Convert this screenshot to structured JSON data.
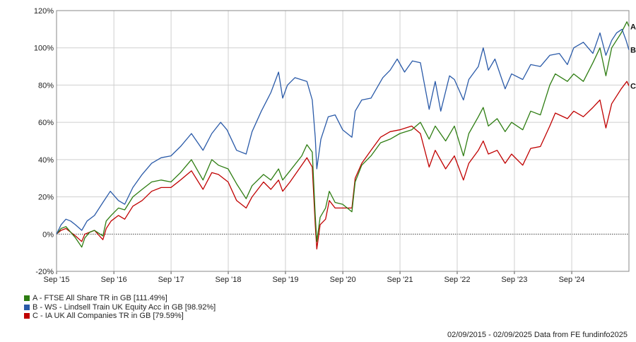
{
  "chart_data": {
    "type": "line",
    "x_start": "2015-09-02",
    "x_end": "2025-09-02",
    "x_ticks": [
      "Sep '15",
      "Sep '16",
      "Sep '17",
      "Sep '18",
      "Sep '19",
      "Sep '20",
      "Sep '21",
      "Sep '22",
      "Sep '23",
      "Sep '24"
    ],
    "y_ticks": [
      "120%",
      "100%",
      "80%",
      "60%",
      "40%",
      "20%",
      "0%",
      "-20%"
    ],
    "y_tick_values": [
      120,
      100,
      80,
      60,
      40,
      20,
      0,
      -20
    ],
    "ylim": [
      -20,
      120
    ],
    "grid": true,
    "legend_placement": "bottom-left",
    "series": [
      {
        "id": "A",
        "name": "A - FTSE All Share TR in GB [111.49%]",
        "color": "#2e7d12",
        "values": [
          [
            "2015-09-02",
            0
          ],
          [
            "2015-10-01",
            3
          ],
          [
            "2015-11-01",
            4
          ],
          [
            "2015-12-01",
            1
          ],
          [
            "2016-01-01",
            -2
          ],
          [
            "2016-02-10",
            -7
          ],
          [
            "2016-03-01",
            -2
          ],
          [
            "2016-04-01",
            1
          ],
          [
            "2016-05-01",
            2
          ],
          [
            "2016-06-24",
            -1
          ],
          [
            "2016-07-15",
            7
          ],
          [
            "2016-08-15",
            10
          ],
          [
            "2016-10-01",
            14
          ],
          [
            "2016-11-10",
            13
          ],
          [
            "2017-01-01",
            20
          ],
          [
            "2017-03-01",
            24
          ],
          [
            "2017-05-01",
            28
          ],
          [
            "2017-07-01",
            29
          ],
          [
            "2017-09-01",
            28
          ],
          [
            "2017-11-01",
            33
          ],
          [
            "2018-01-10",
            40
          ],
          [
            "2018-03-25",
            29
          ],
          [
            "2018-05-20",
            40
          ],
          [
            "2018-07-01",
            37
          ],
          [
            "2018-09-01",
            35
          ],
          [
            "2018-10-25",
            27
          ],
          [
            "2018-12-25",
            19
          ],
          [
            "2019-02-01",
            26
          ],
          [
            "2019-04-15",
            32
          ],
          [
            "2019-06-01",
            29
          ],
          [
            "2019-07-20",
            35
          ],
          [
            "2019-08-15",
            29
          ],
          [
            "2019-10-01",
            34
          ],
          [
            "2019-12-15",
            42
          ],
          [
            "2020-01-17",
            48
          ],
          [
            "2020-02-20",
            44
          ],
          [
            "2020-03-10",
            10
          ],
          [
            "2020-03-20",
            -4
          ],
          [
            "2020-04-10",
            9
          ],
          [
            "2020-05-15",
            14
          ],
          [
            "2020-06-08",
            23
          ],
          [
            "2020-07-15",
            17
          ],
          [
            "2020-09-01",
            16
          ],
          [
            "2020-10-30",
            12
          ],
          [
            "2020-11-20",
            28
          ],
          [
            "2021-01-01",
            37
          ],
          [
            "2021-03-01",
            42
          ],
          [
            "2021-05-01",
            49
          ],
          [
            "2021-07-01",
            51
          ],
          [
            "2021-09-01",
            54
          ],
          [
            "2021-11-15",
            56
          ],
          [
            "2022-01-10",
            60
          ],
          [
            "2022-03-07",
            51
          ],
          [
            "2022-04-15",
            58
          ],
          [
            "2022-06-20",
            50
          ],
          [
            "2022-08-15",
            58
          ],
          [
            "2022-10-12",
            42
          ],
          [
            "2022-11-15",
            54
          ],
          [
            "2023-01-15",
            63
          ],
          [
            "2023-02-15",
            68
          ],
          [
            "2023-03-20",
            58
          ],
          [
            "2023-05-15",
            62
          ],
          [
            "2023-07-05",
            55
          ],
          [
            "2023-08-15",
            60
          ],
          [
            "2023-10-25",
            56
          ],
          [
            "2023-12-15",
            66
          ],
          [
            "2024-02-15",
            64
          ],
          [
            "2024-04-15",
            80
          ],
          [
            "2024-05-20",
            86
          ],
          [
            "2024-08-05",
            82
          ],
          [
            "2024-09-15",
            86
          ],
          [
            "2024-11-15",
            82
          ],
          [
            "2025-01-15",
            92
          ],
          [
            "2025-03-01",
            100
          ],
          [
            "2025-04-08",
            85
          ],
          [
            "2025-05-15",
            100
          ],
          [
            "2025-07-15",
            108
          ],
          [
            "2025-08-20",
            114
          ],
          [
            "2025-09-02",
            111.49
          ]
        ]
      },
      {
        "id": "B",
        "name": "B - WS - Lindsell Train UK Equity Acc in GB [98.92%]",
        "color": "#2a5aa8",
        "values": [
          [
            "2015-09-02",
            0
          ],
          [
            "2015-10-01",
            5
          ],
          [
            "2015-11-01",
            8
          ],
          [
            "2015-12-01",
            7
          ],
          [
            "2016-01-01",
            5
          ],
          [
            "2016-02-10",
            2
          ],
          [
            "2016-03-15",
            7
          ],
          [
            "2016-05-01",
            10
          ],
          [
            "2016-06-24",
            17
          ],
          [
            "2016-08-10",
            23
          ],
          [
            "2016-10-01",
            18
          ],
          [
            "2016-11-10",
            16
          ],
          [
            "2017-01-01",
            25
          ],
          [
            "2017-03-01",
            32
          ],
          [
            "2017-05-01",
            38
          ],
          [
            "2017-07-01",
            41
          ],
          [
            "2017-09-01",
            42
          ],
          [
            "2017-11-01",
            47
          ],
          [
            "2018-01-10",
            54
          ],
          [
            "2018-03-25",
            45
          ],
          [
            "2018-05-20",
            54
          ],
          [
            "2018-07-15",
            60
          ],
          [
            "2018-08-25",
            56
          ],
          [
            "2018-10-25",
            45
          ],
          [
            "2018-12-25",
            43
          ],
          [
            "2019-02-01",
            55
          ],
          [
            "2019-04-01",
            66
          ],
          [
            "2019-06-01",
            76
          ],
          [
            "2019-07-20",
            87
          ],
          [
            "2019-08-15",
            73
          ],
          [
            "2019-09-15",
            80
          ],
          [
            "2019-11-01",
            84
          ],
          [
            "2020-01-17",
            82
          ],
          [
            "2020-02-20",
            72
          ],
          [
            "2020-03-10",
            52
          ],
          [
            "2020-03-20",
            35
          ],
          [
            "2020-04-15",
            51
          ],
          [
            "2020-06-01",
            63
          ],
          [
            "2020-07-15",
            64
          ],
          [
            "2020-09-01",
            56
          ],
          [
            "2020-10-30",
            52
          ],
          [
            "2020-11-20",
            66
          ],
          [
            "2021-01-01",
            72
          ],
          [
            "2021-03-01",
            73
          ],
          [
            "2021-05-15",
            84
          ],
          [
            "2021-07-01",
            88
          ],
          [
            "2021-08-15",
            94
          ],
          [
            "2021-10-01",
            87
          ],
          [
            "2021-11-20",
            93
          ],
          [
            "2022-01-10",
            92
          ],
          [
            "2022-03-07",
            67
          ],
          [
            "2022-04-15",
            82
          ],
          [
            "2022-05-20",
            66
          ],
          [
            "2022-07-15",
            85
          ],
          [
            "2022-08-15",
            83
          ],
          [
            "2022-10-12",
            72
          ],
          [
            "2022-11-15",
            83
          ],
          [
            "2023-01-15",
            90
          ],
          [
            "2023-02-15",
            100
          ],
          [
            "2023-03-20",
            88
          ],
          [
            "2023-05-01",
            94
          ],
          [
            "2023-07-05",
            78
          ],
          [
            "2023-08-15",
            86
          ],
          [
            "2023-10-25",
            83
          ],
          [
            "2023-12-15",
            91
          ],
          [
            "2024-02-15",
            90
          ],
          [
            "2024-04-15",
            96
          ],
          [
            "2024-06-15",
            97
          ],
          [
            "2024-08-05",
            91
          ],
          [
            "2024-09-15",
            100
          ],
          [
            "2024-11-15",
            103
          ],
          [
            "2025-01-15",
            97
          ],
          [
            "2025-03-01",
            108
          ],
          [
            "2025-04-08",
            96
          ],
          [
            "2025-05-15",
            104
          ],
          [
            "2025-06-15",
            108
          ],
          [
            "2025-07-20",
            110
          ],
          [
            "2025-08-15",
            104
          ],
          [
            "2025-09-02",
            98.92
          ]
        ]
      },
      {
        "id": "C",
        "name": "C - IA UK All Companies TR in GB [79.59%]",
        "color": "#c00000",
        "values": [
          [
            "2015-09-02",
            0
          ],
          [
            "2015-10-01",
            2
          ],
          [
            "2015-11-01",
            3
          ],
          [
            "2015-12-01",
            1
          ],
          [
            "2016-01-01",
            -1
          ],
          [
            "2016-02-10",
            -4
          ],
          [
            "2016-03-01",
            0
          ],
          [
            "2016-04-01",
            1
          ],
          [
            "2016-05-01",
            2
          ],
          [
            "2016-06-24",
            -3
          ],
          [
            "2016-07-15",
            3
          ],
          [
            "2016-08-15",
            7
          ],
          [
            "2016-10-01",
            10
          ],
          [
            "2016-11-10",
            8
          ],
          [
            "2017-01-01",
            15
          ],
          [
            "2017-03-01",
            18
          ],
          [
            "2017-05-01",
            23
          ],
          [
            "2017-07-01",
            25
          ],
          [
            "2017-09-01",
            25
          ],
          [
            "2017-11-01",
            29
          ],
          [
            "2018-01-10",
            34
          ],
          [
            "2018-03-25",
            24
          ],
          [
            "2018-05-20",
            33
          ],
          [
            "2018-07-01",
            32
          ],
          [
            "2018-09-01",
            28
          ],
          [
            "2018-10-25",
            18
          ],
          [
            "2018-12-25",
            14
          ],
          [
            "2019-02-01",
            20
          ],
          [
            "2019-04-15",
            28
          ],
          [
            "2019-06-01",
            24
          ],
          [
            "2019-07-20",
            29
          ],
          [
            "2019-08-15",
            23
          ],
          [
            "2019-10-01",
            28
          ],
          [
            "2019-12-15",
            37
          ],
          [
            "2020-01-17",
            41
          ],
          [
            "2020-02-20",
            36
          ],
          [
            "2020-03-10",
            5
          ],
          [
            "2020-03-20",
            -8
          ],
          [
            "2020-04-10",
            5
          ],
          [
            "2020-05-15",
            8
          ],
          [
            "2020-06-08",
            18
          ],
          [
            "2020-07-15",
            14
          ],
          [
            "2020-09-01",
            14
          ],
          [
            "2020-10-30",
            14
          ],
          [
            "2020-11-20",
            30
          ],
          [
            "2021-01-01",
            38
          ],
          [
            "2021-03-01",
            45
          ],
          [
            "2021-05-01",
            52
          ],
          [
            "2021-07-01",
            55
          ],
          [
            "2021-09-01",
            56
          ],
          [
            "2021-11-15",
            58
          ],
          [
            "2022-01-10",
            54
          ],
          [
            "2022-03-07",
            36
          ],
          [
            "2022-04-15",
            45
          ],
          [
            "2022-06-20",
            35
          ],
          [
            "2022-08-15",
            42
          ],
          [
            "2022-10-12",
            29
          ],
          [
            "2022-11-15",
            38
          ],
          [
            "2023-01-15",
            45
          ],
          [
            "2023-02-15",
            50
          ],
          [
            "2023-03-20",
            43
          ],
          [
            "2023-05-15",
            45
          ],
          [
            "2023-07-05",
            38
          ],
          [
            "2023-08-15",
            43
          ],
          [
            "2023-10-25",
            37
          ],
          [
            "2023-12-15",
            46
          ],
          [
            "2024-02-15",
            47
          ],
          [
            "2024-04-15",
            58
          ],
          [
            "2024-05-20",
            65
          ],
          [
            "2024-08-05",
            62
          ],
          [
            "2024-09-15",
            66
          ],
          [
            "2024-11-15",
            63
          ],
          [
            "2025-01-15",
            68
          ],
          [
            "2025-03-01",
            72
          ],
          [
            "2025-04-08",
            57
          ],
          [
            "2025-05-15",
            70
          ],
          [
            "2025-07-15",
            78
          ],
          [
            "2025-08-20",
            82
          ],
          [
            "2025-09-02",
            79.59
          ]
        ]
      }
    ],
    "end_labels": [
      "A",
      "B",
      "C"
    ]
  },
  "footer": "02/09/2015 - 02/09/2025 Data from FE fundinfo2025"
}
